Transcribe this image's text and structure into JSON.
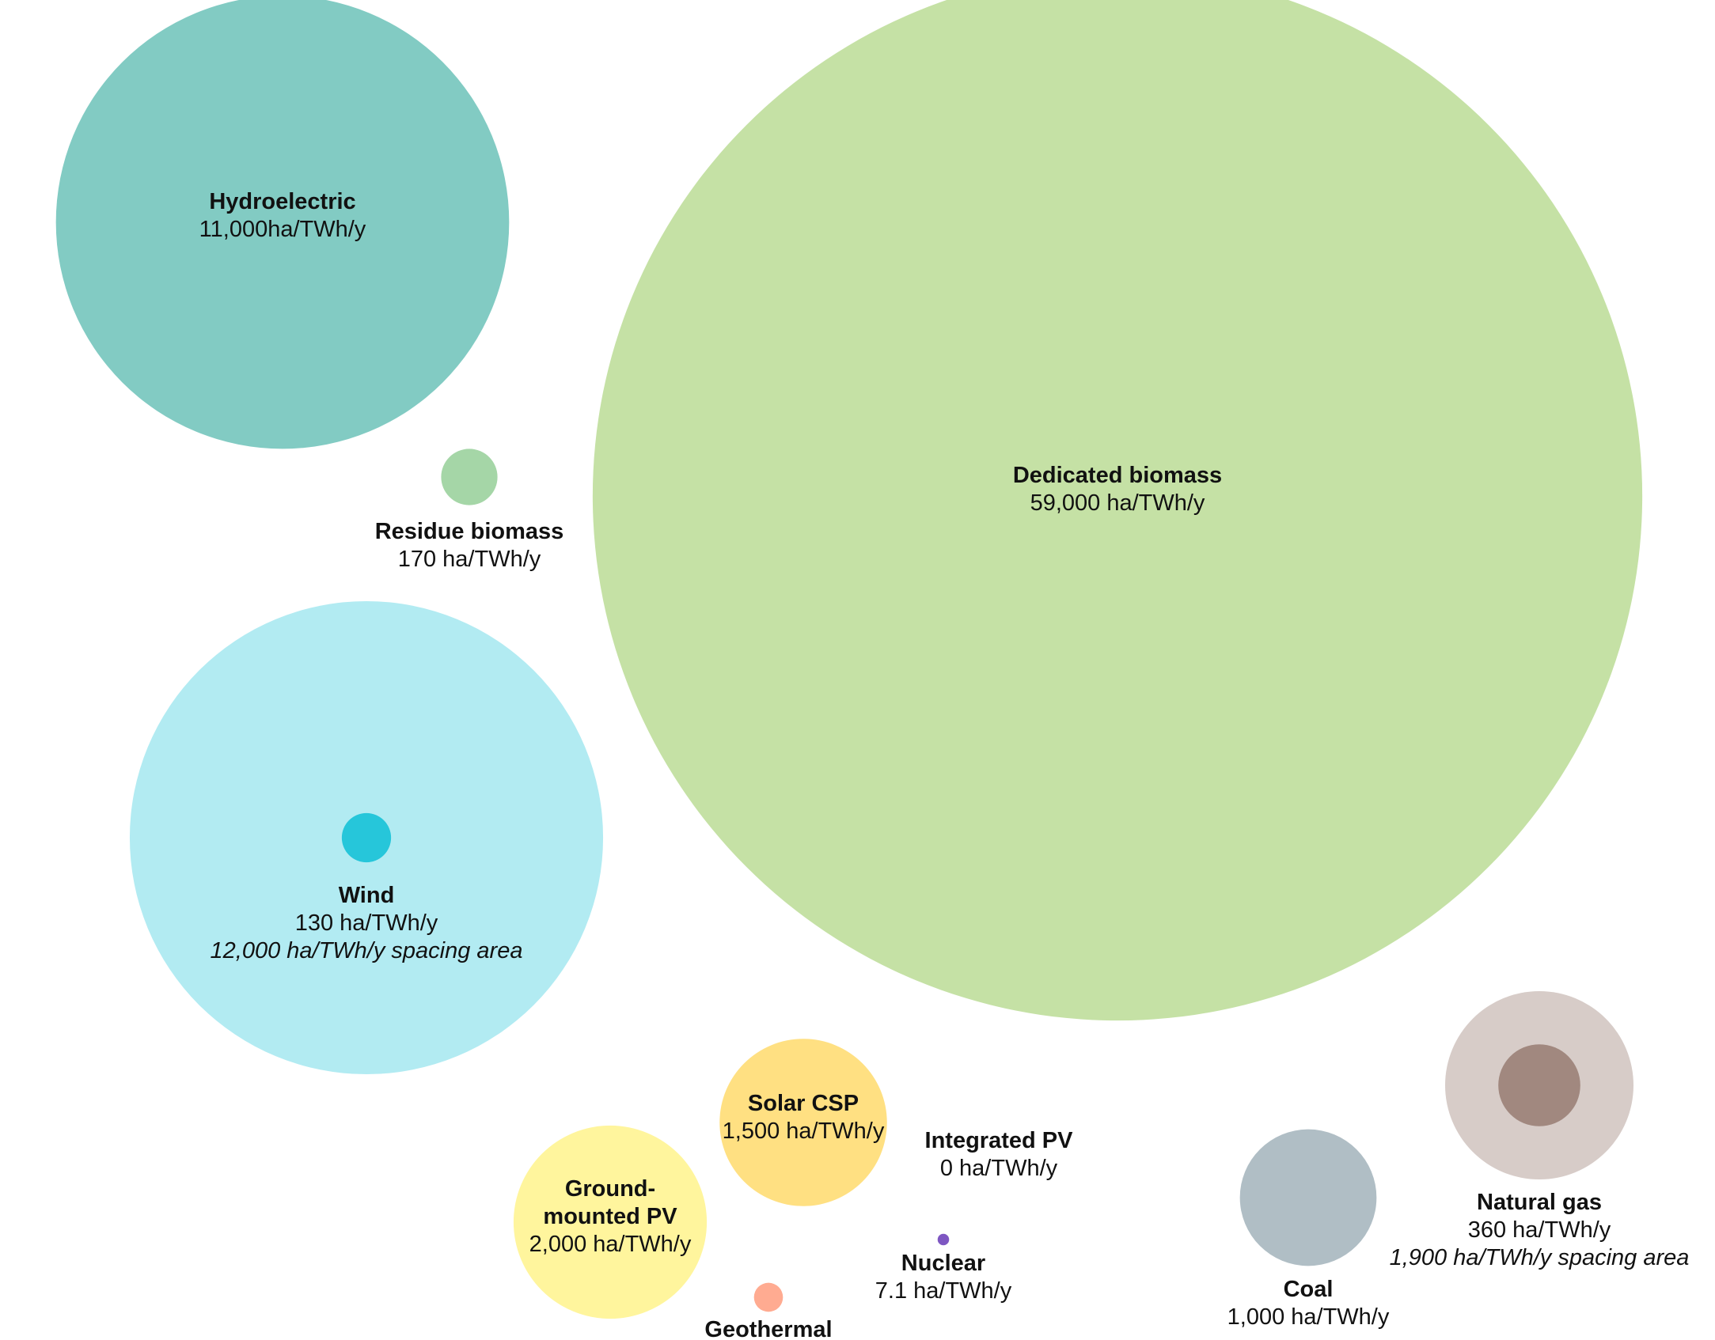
{
  "chart_data": {
    "type": "bubble",
    "unit": "ha/TWh/y",
    "bubbles": [
      {
        "id": "hydroelectric",
        "name": "Hydroelectric",
        "value": 11000,
        "value_label": "11,000ha/TWh/y",
        "color": "#82cbc3"
      },
      {
        "id": "dedicated-biomass",
        "name": "Dedicated biomass",
        "value": 59000,
        "value_label": "59,000 ha/TWh/y",
        "color": "#c5e1a5"
      },
      {
        "id": "residue-biomass",
        "name": "Residue biomass",
        "value": 170,
        "value_label": "170 ha/TWh/y",
        "color": "#a5d6a7"
      },
      {
        "id": "wind",
        "name": "Wind",
        "value": 130,
        "value_label": "130 ha/TWh/y",
        "spacing_value": 12000,
        "spacing_label": "12,000 ha/TWh/y spacing area",
        "color": "#26c6da",
        "spacing_color": "#b2ebf2"
      },
      {
        "id": "solar-csp",
        "name": "Solar CSP",
        "value": 1500,
        "value_label": "1,500 ha/TWh/y",
        "color": "#ffe082"
      },
      {
        "id": "ground-mounted-pv",
        "name": "Ground-\nmounted PV",
        "value": 2000,
        "value_label": "2,000 ha/TWh/y",
        "color": "#fff59d"
      },
      {
        "id": "integrated-pv",
        "name": "Integrated PV",
        "value": 0,
        "value_label": "0 ha/TWh/y",
        "color": "#ffffff"
      },
      {
        "id": "nuclear",
        "name": "Nuclear",
        "value": 7.1,
        "value_label": "7.1 ha/TWh/y",
        "color": "#7e57c2"
      },
      {
        "id": "geothermal",
        "name": "Geothermal",
        "value": 45,
        "value_label": "",
        "color": "#ffab91"
      },
      {
        "id": "coal",
        "name": "Coal",
        "value": 1000,
        "value_label": "1,000 ha/TWh/y",
        "color": "#b0bec5"
      },
      {
        "id": "natural-gas",
        "name": "Natural gas",
        "value": 360,
        "value_label": "360 ha/TWh/y",
        "spacing_value": 1900,
        "spacing_label": "1,900 ha/TWh/y spacing area",
        "color": "#a1887f",
        "spacing_color": "#d7ccc8"
      }
    ]
  }
}
